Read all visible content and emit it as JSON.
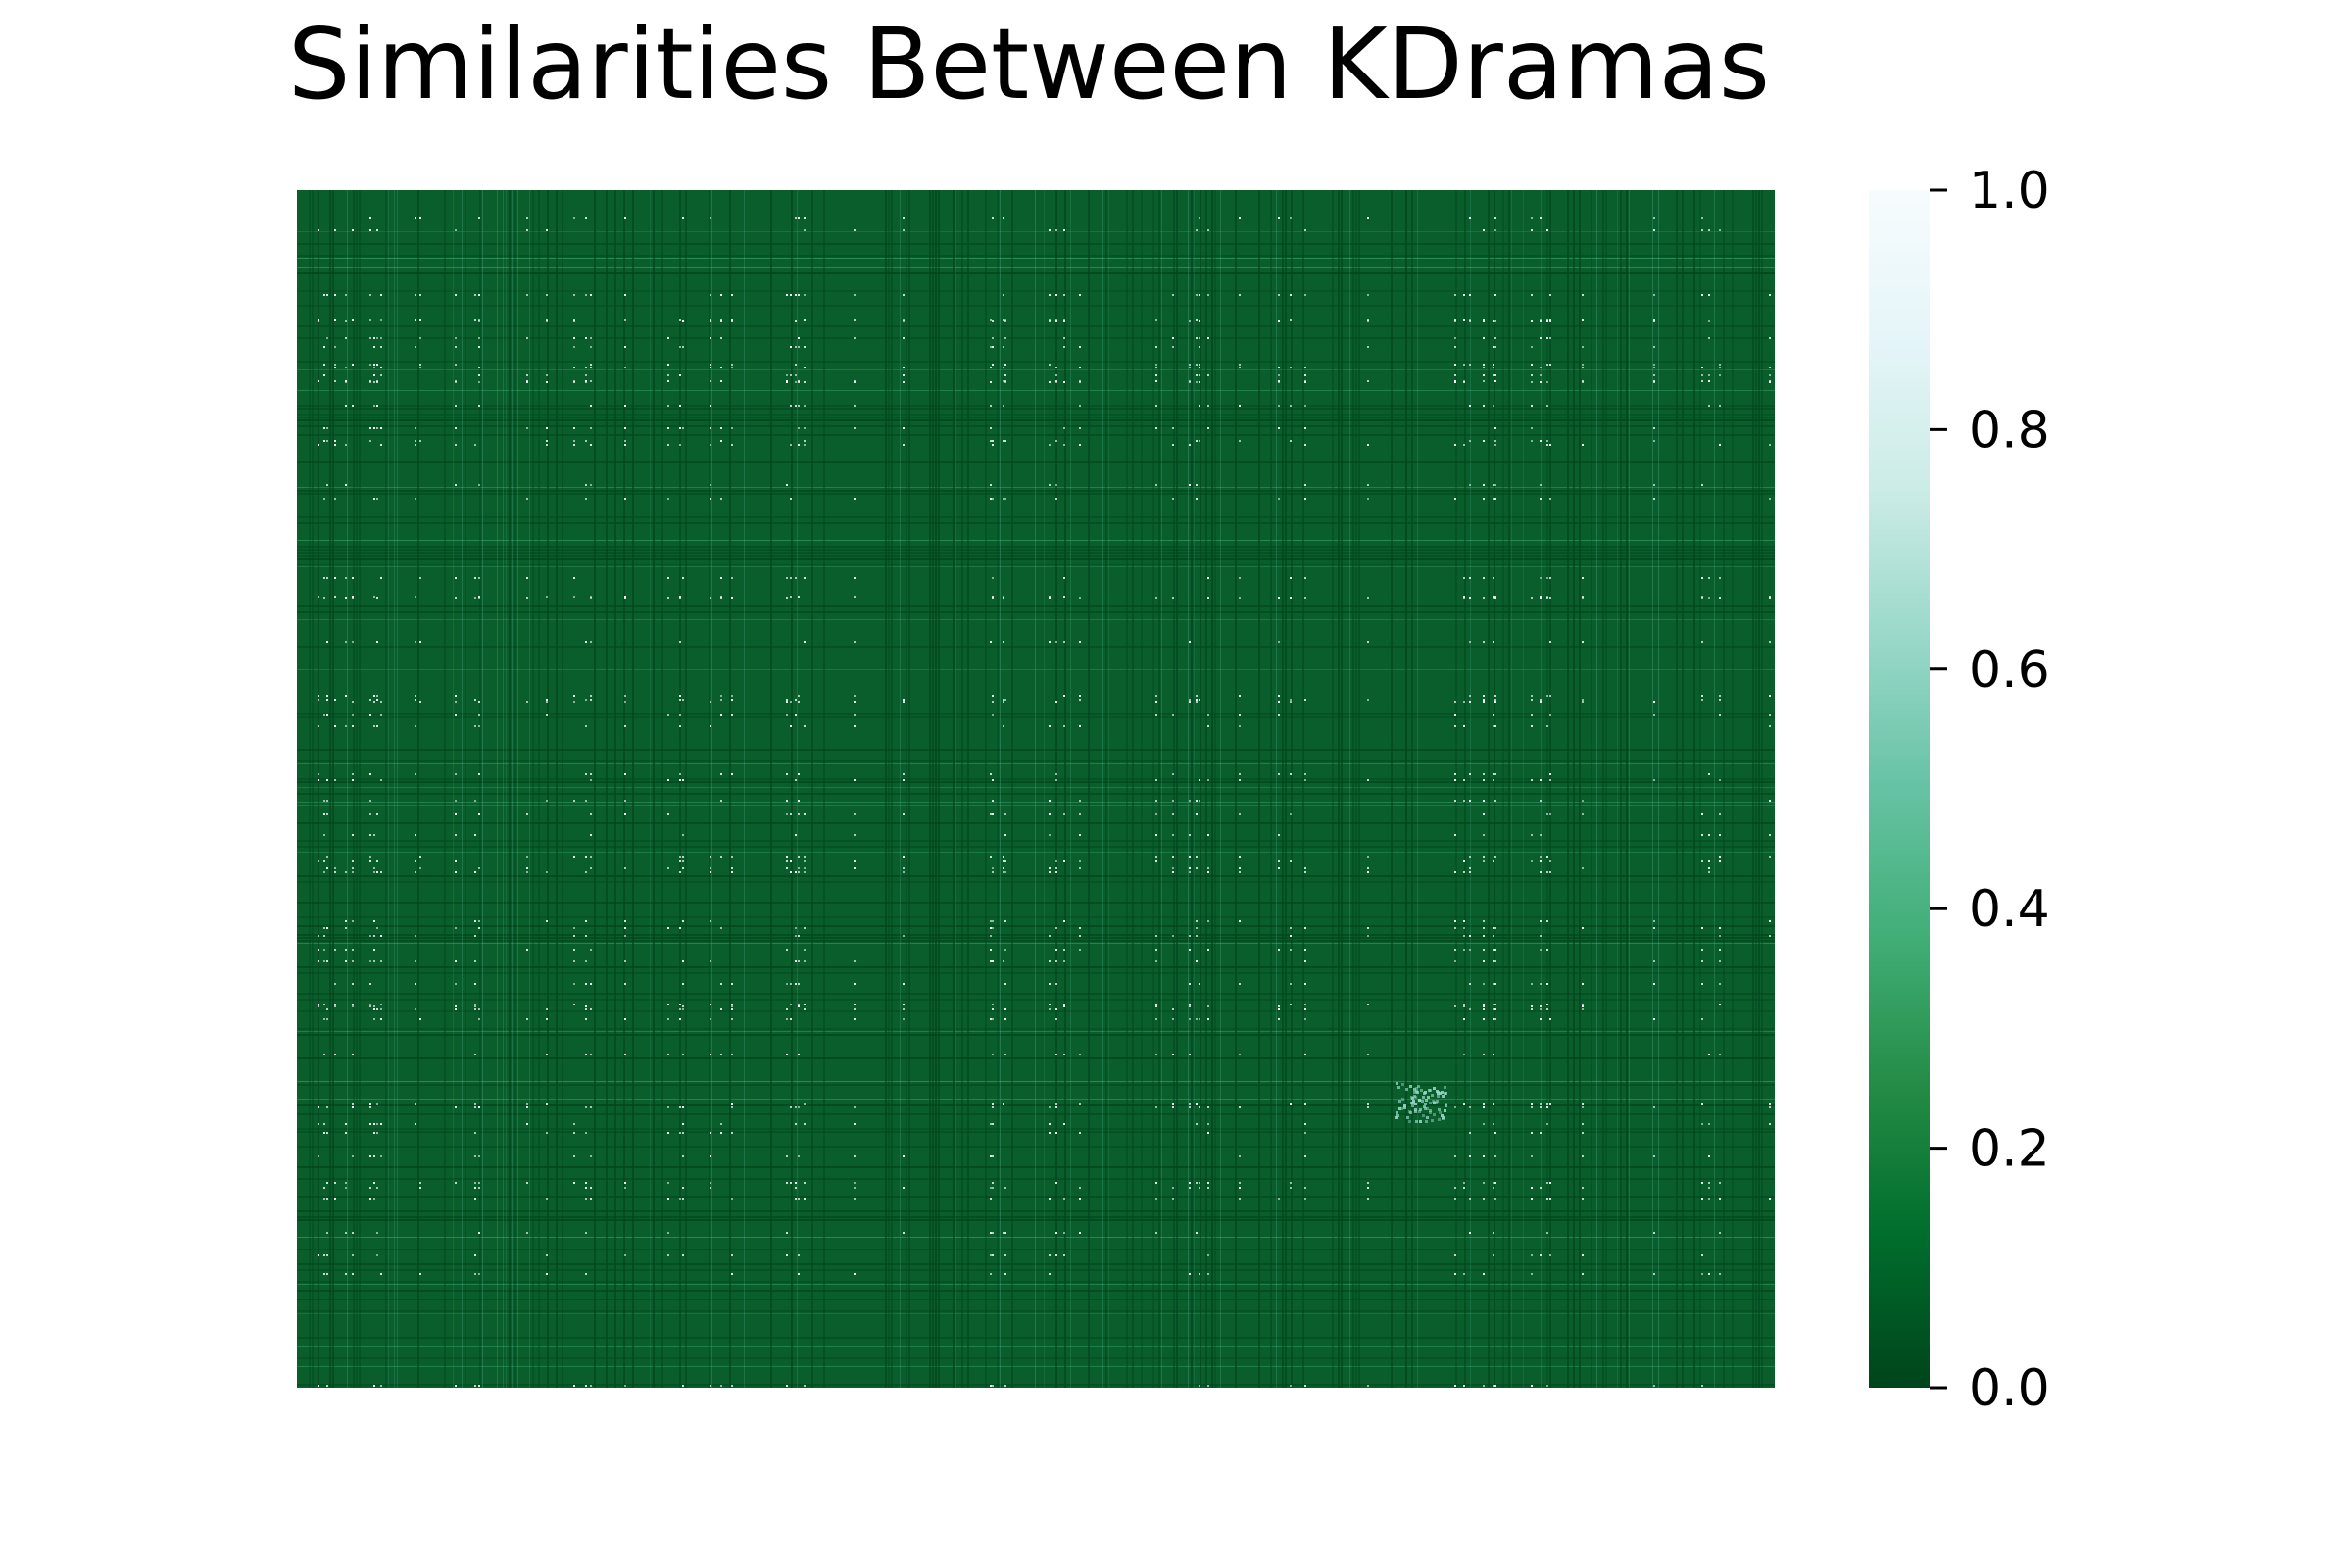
{
  "chart_data": {
    "type": "heatmap",
    "title": "Similarities Between KDramas",
    "xlabel": "",
    "ylabel": "",
    "x_tick_labels_visible": false,
    "y_tick_labels_visible": false,
    "value_range": [
      0.0,
      1.0
    ],
    "colormap": "BuGn_r",
    "colormap_stops": [
      {
        "value": 0.0,
        "color": "#00441b"
      },
      {
        "value": 0.125,
        "color": "#006d2c"
      },
      {
        "value": 0.25,
        "color": "#238b45"
      },
      {
        "value": 0.375,
        "color": "#41ae76"
      },
      {
        "value": 0.5,
        "color": "#66c2a4"
      },
      {
        "value": 0.625,
        "color": "#99d8c9"
      },
      {
        "value": 0.75,
        "color": "#ccece6"
      },
      {
        "value": 0.875,
        "color": "#e5f5f9"
      },
      {
        "value": 1.0,
        "color": "#f7fcfd"
      }
    ],
    "dominant_value": 0.12,
    "typical_cell_color": "#0a5e2c",
    "colorbar": {
      "ticks": [
        0.0,
        0.2,
        0.4,
        0.6,
        0.8,
        1.0
      ],
      "tick_labels": [
        "0.0",
        "0.2",
        "0.4",
        "0.6",
        "0.8",
        "1.0"
      ]
    }
  }
}
